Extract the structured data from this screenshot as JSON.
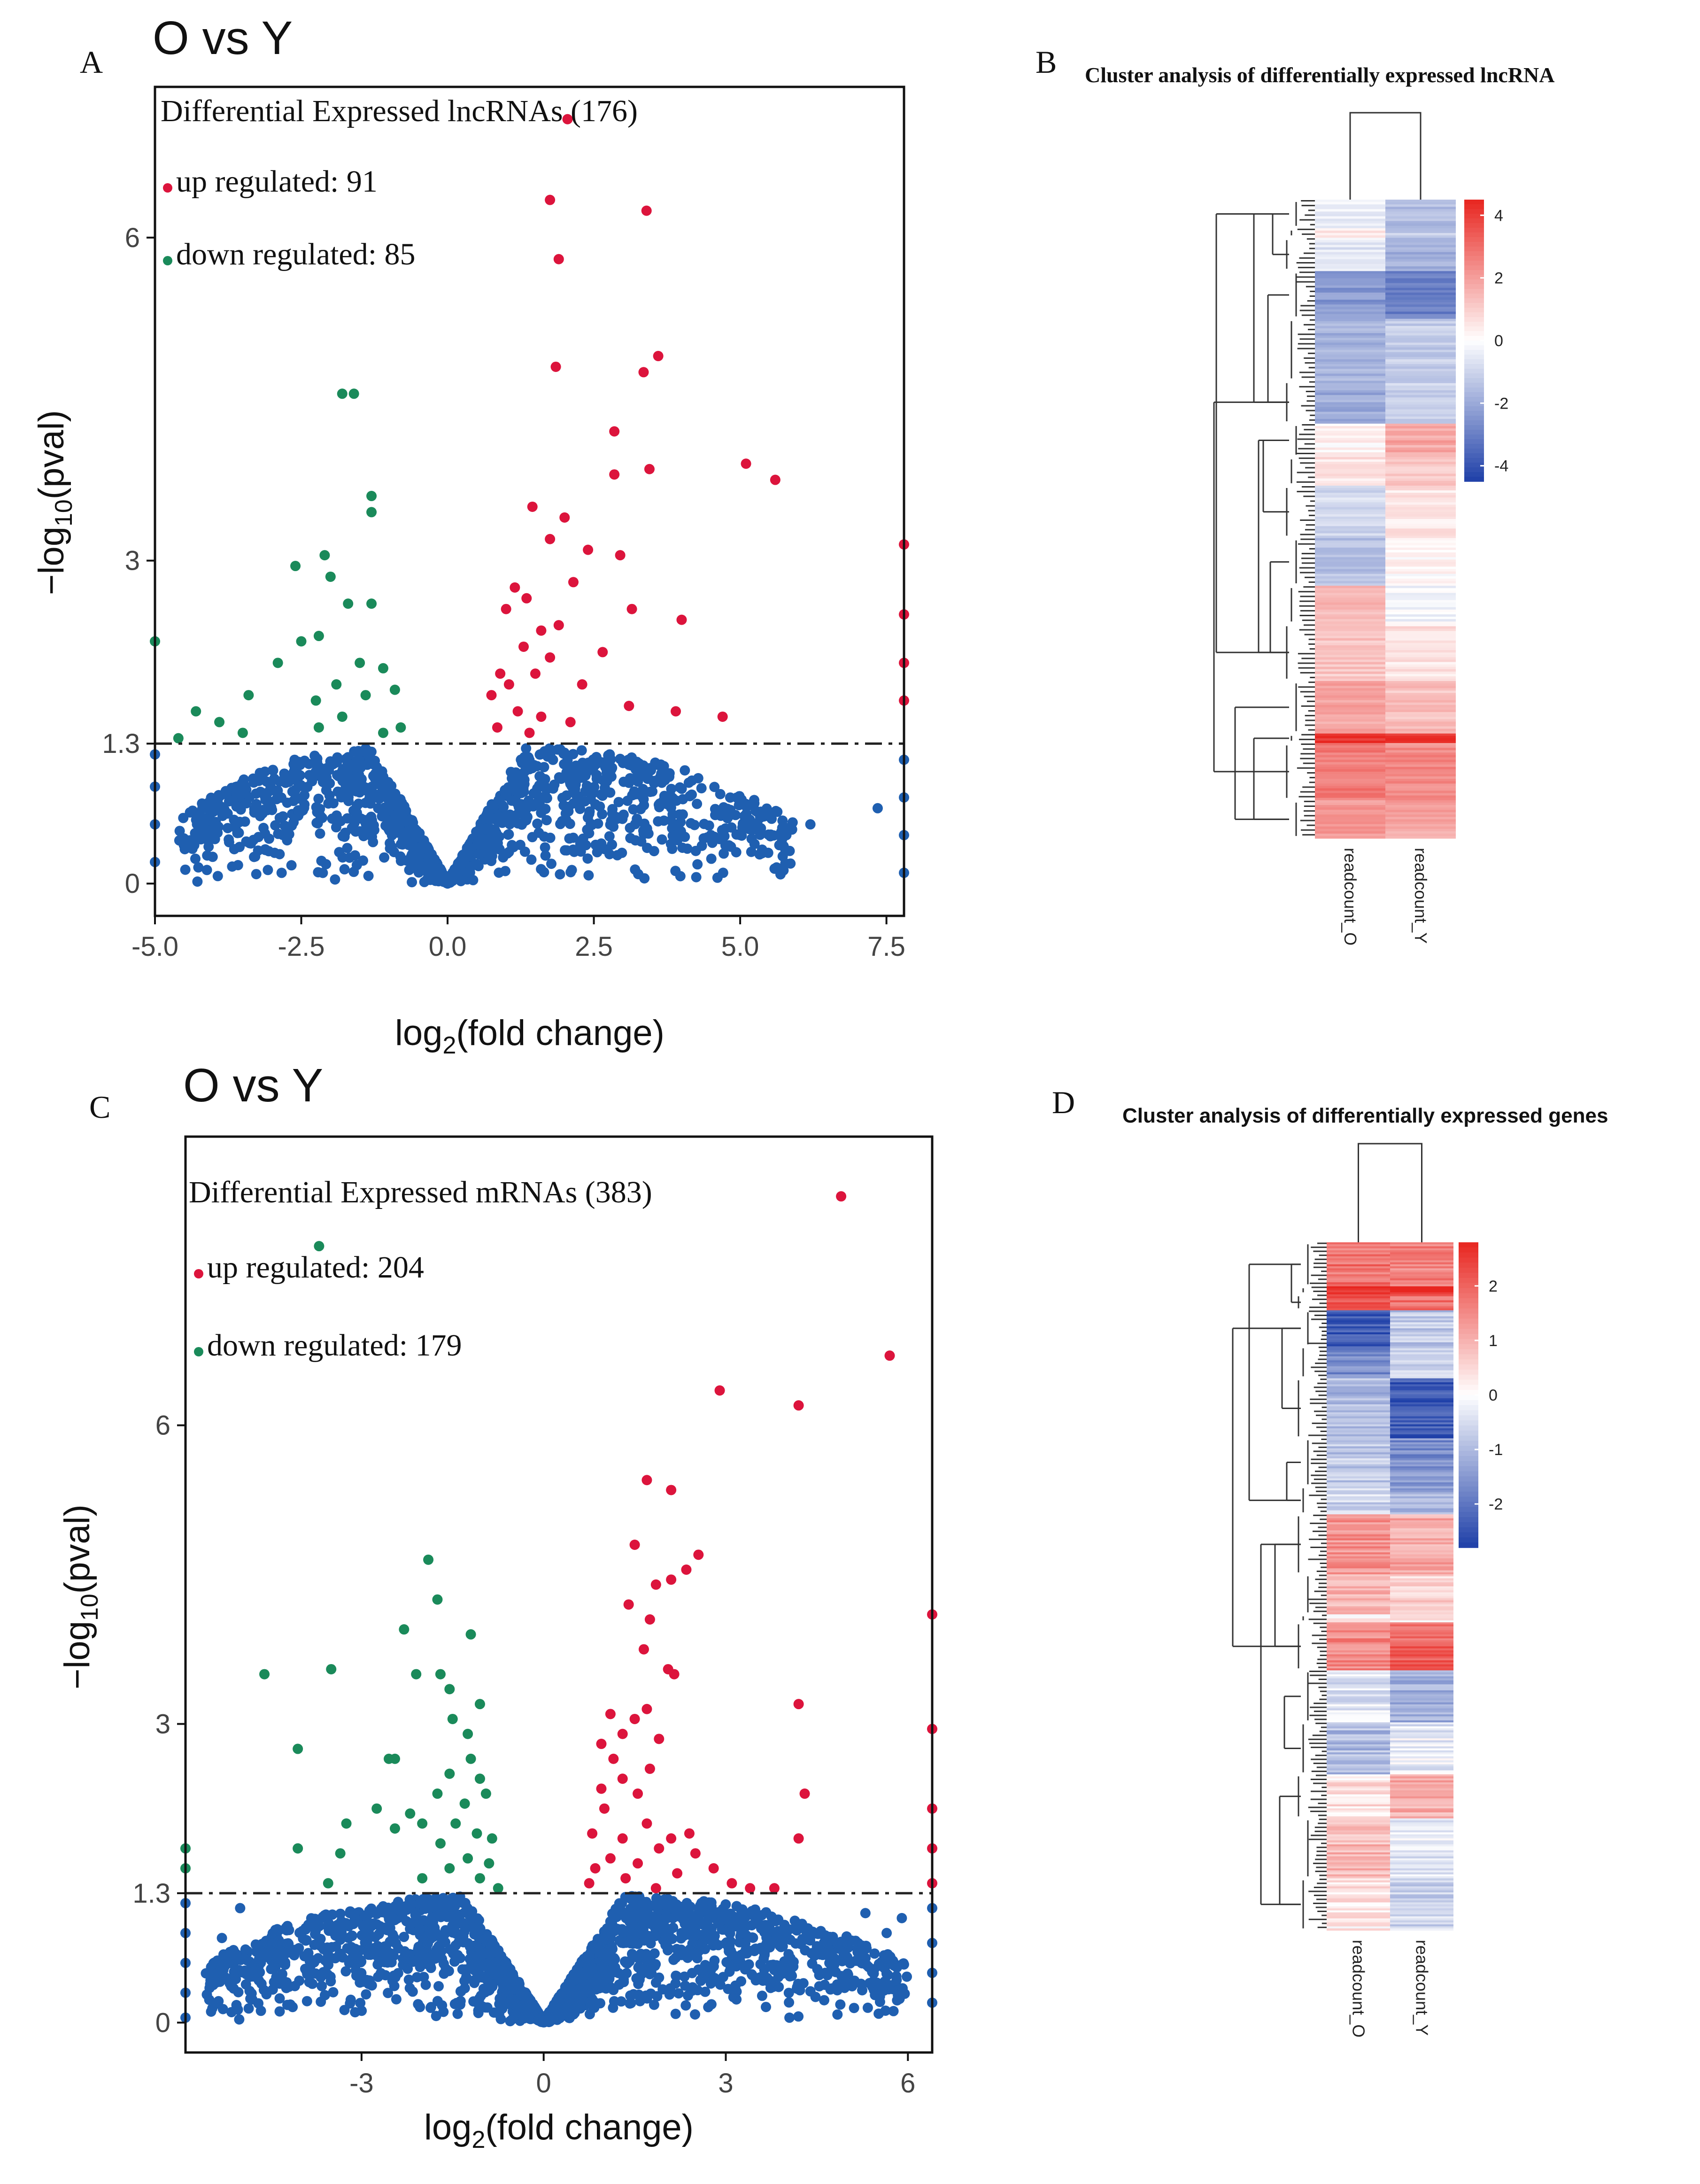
{
  "colors": {
    "up": "#dc143c",
    "down": "#1a8a5a",
    "ns": "#1f5fb0",
    "heat_high": "#e8251f",
    "heat_mid": "#ffffff",
    "heat_low": "#1e3fa8"
  },
  "panels": {
    "A": {
      "letter": "A"
    },
    "B": {
      "letter": "B"
    },
    "C": {
      "letter": "C"
    },
    "D": {
      "letter": "D"
    }
  },
  "chart_data": [
    {
      "panel": "A",
      "type": "scatter",
      "title": "O vs Y",
      "xlabel_main": "log",
      "xlabel_sub": "2",
      "xlabel_rest": "(fold change)",
      "ylabel_main": "−log",
      "ylabel_sub": "10",
      "ylabel_rest": "(pval)",
      "xlim": [
        -5.0,
        7.8
      ],
      "ylim": [
        -0.3,
        7.4
      ],
      "xticks": [
        -5.0,
        -2.5,
        0.0,
        2.5,
        5.0,
        7.5
      ],
      "xtick_labels": [
        "-5.0",
        "-2.5",
        "0.0",
        "2.5",
        "5.0",
        "7.5"
      ],
      "yticks": [
        0,
        1.3,
        3,
        6
      ],
      "ytick_labels": [
        "0",
        "1.3",
        "3",
        "6"
      ],
      "threshold": 1.3,
      "annotation": {
        "title": "Differential Expressed lncRNAs (176)",
        "up": "up regulated: 91",
        "down": "down regulated: 85"
      },
      "up_points": [
        [
          2.05,
          7.1
        ],
        [
          1.75,
          6.35
        ],
        [
          3.4,
          6.25
        ],
        [
          1.9,
          5.8
        ],
        [
          3.6,
          4.9
        ],
        [
          1.85,
          4.8
        ],
        [
          3.35,
          4.75
        ],
        [
          2.85,
          4.2
        ],
        [
          3.45,
          3.85
        ],
        [
          5.1,
          3.9
        ],
        [
          5.6,
          3.75
        ],
        [
          2.85,
          3.8
        ],
        [
          1.45,
          3.5
        ],
        [
          2.0,
          3.4
        ],
        [
          1.75,
          3.2
        ],
        [
          2.4,
          3.1
        ],
        [
          2.95,
          3.05
        ],
        [
          1.15,
          2.75
        ],
        [
          1.35,
          2.65
        ],
        [
          2.15,
          2.8
        ],
        [
          3.15,
          2.55
        ],
        [
          4.0,
          2.45
        ],
        [
          1.0,
          2.55
        ],
        [
          1.6,
          2.35
        ],
        [
          1.9,
          2.4
        ],
        [
          1.3,
          2.2
        ],
        [
          1.75,
          2.1
        ],
        [
          2.65,
          2.15
        ],
        [
          0.9,
          1.95
        ],
        [
          1.05,
          1.85
        ],
        [
          1.5,
          1.95
        ],
        [
          2.3,
          1.85
        ],
        [
          0.75,
          1.75
        ],
        [
          1.2,
          1.6
        ],
        [
          1.6,
          1.55
        ],
        [
          0.85,
          1.45
        ],
        [
          1.4,
          1.4
        ],
        [
          2.1,
          1.5
        ],
        [
          3.1,
          1.65
        ],
        [
          3.9,
          1.6
        ],
        [
          4.7,
          1.55
        ],
        [
          7.8,
          3.15
        ],
        [
          7.8,
          2.5
        ],
        [
          7.8,
          2.05
        ],
        [
          7.8,
          1.7
        ]
      ],
      "down_points": [
        [
          -1.8,
          4.55
        ],
        [
          -1.6,
          4.55
        ],
        [
          -1.3,
          3.6
        ],
        [
          -1.3,
          3.45
        ],
        [
          -2.1,
          3.05
        ],
        [
          -2.6,
          2.95
        ],
        [
          -2.0,
          2.85
        ],
        [
          -1.7,
          2.6
        ],
        [
          -1.3,
          2.6
        ],
        [
          -2.2,
          2.3
        ],
        [
          -2.5,
          2.25
        ],
        [
          -1.5,
          2.05
        ],
        [
          -2.9,
          2.05
        ],
        [
          -1.1,
          2.0
        ],
        [
          -1.9,
          1.85
        ],
        [
          -2.25,
          1.7
        ],
        [
          -0.9,
          1.8
        ],
        [
          -1.4,
          1.75
        ],
        [
          -3.4,
          1.75
        ],
        [
          -1.8,
          1.55
        ],
        [
          -2.2,
          1.45
        ],
        [
          -3.9,
          1.5
        ],
        [
          -1.1,
          1.4
        ],
        [
          -0.8,
          1.45
        ],
        [
          -3.5,
          1.4
        ],
        [
          -4.3,
          1.6
        ],
        [
          -4.6,
          1.35
        ],
        [
          -5.0,
          2.25
        ]
      ],
      "ns_cloud": {
        "x_range": [
          -4.6,
          5.9
        ],
        "max_y": 1.28,
        "count": 1500
      },
      "ns_edge_points": [
        [
          -5.0,
          1.2
        ],
        [
          -5.0,
          0.9
        ],
        [
          -5.0,
          0.55
        ],
        [
          -5.0,
          0.2
        ],
        [
          7.8,
          1.15
        ],
        [
          7.8,
          0.8
        ],
        [
          7.8,
          0.45
        ],
        [
          7.8,
          0.1
        ],
        [
          6.2,
          0.55
        ],
        [
          7.35,
          0.7
        ],
        [
          4.5,
          0.45
        ]
      ]
    },
    {
      "panel": "C",
      "type": "scatter",
      "title": "O vs Y",
      "xlabel_main": "log",
      "xlabel_sub": "2",
      "xlabel_rest": "(fold change)",
      "ylabel_main": "−log",
      "ylabel_sub": "10",
      "ylabel_rest": "(pval)",
      "xlim": [
        -5.9,
        6.4
      ],
      "ylim": [
        -0.3,
        8.9
      ],
      "xticks": [
        -3,
        0,
        3,
        6
      ],
      "xtick_labels": [
        "-3",
        "0",
        "3",
        "6"
      ],
      "yticks": [
        0,
        1.3,
        3,
        6
      ],
      "ytick_labels": [
        "0",
        "1.3",
        "3",
        "6"
      ],
      "threshold": 1.3,
      "annotation": {
        "title": "Differential Expressed mRNAs (383)",
        "up": "up regulated: 204",
        "down": "down regulated: 179"
      },
      "up_points": [
        [
          4.9,
          8.3
        ],
        [
          5.7,
          6.7
        ],
        [
          2.9,
          6.35
        ],
        [
          4.2,
          6.2
        ],
        [
          1.7,
          5.45
        ],
        [
          2.1,
          5.35
        ],
        [
          1.5,
          4.8
        ],
        [
          2.55,
          4.7
        ],
        [
          2.35,
          4.55
        ],
        [
          2.1,
          4.45
        ],
        [
          1.85,
          4.4
        ],
        [
          1.4,
          4.2
        ],
        [
          1.75,
          4.05
        ],
        [
          1.65,
          3.75
        ],
        [
          2.05,
          3.55
        ],
        [
          2.15,
          3.5
        ],
        [
          4.2,
          3.2
        ],
        [
          1.7,
          3.15
        ],
        [
          1.1,
          3.1
        ],
        [
          1.5,
          3.05
        ],
        [
          1.3,
          2.9
        ],
        [
          0.95,
          2.8
        ],
        [
          1.9,
          2.85
        ],
        [
          1.15,
          2.65
        ],
        [
          1.75,
          2.55
        ],
        [
          1.3,
          2.45
        ],
        [
          0.95,
          2.35
        ],
        [
          1.55,
          2.3
        ],
        [
          4.3,
          2.3
        ],
        [
          1.0,
          2.15
        ],
        [
          1.7,
          2.0
        ],
        [
          2.4,
          1.9
        ],
        [
          2.1,
          1.85
        ],
        [
          4.2,
          1.85
        ],
        [
          1.3,
          1.85
        ],
        [
          0.8,
          1.9
        ],
        [
          1.9,
          1.75
        ],
        [
          2.5,
          1.7
        ],
        [
          1.1,
          1.65
        ],
        [
          1.55,
          1.6
        ],
        [
          0.85,
          1.55
        ],
        [
          2.2,
          1.5
        ],
        [
          2.8,
          1.55
        ],
        [
          1.35,
          1.45
        ],
        [
          0.75,
          1.4
        ],
        [
          1.85,
          1.35
        ],
        [
          3.1,
          1.4
        ],
        [
          3.4,
          1.35
        ],
        [
          3.8,
          1.35
        ],
        [
          6.4,
          4.1
        ],
        [
          6.4,
          2.95
        ],
        [
          6.4,
          2.15
        ],
        [
          6.4,
          1.75
        ],
        [
          6.4,
          1.4
        ]
      ],
      "down_points": [
        [
          -3.7,
          7.8
        ],
        [
          -1.9,
          4.65
        ],
        [
          -1.75,
          4.25
        ],
        [
          -2.3,
          3.95
        ],
        [
          -1.2,
          3.9
        ],
        [
          -4.6,
          3.5
        ],
        [
          -3.5,
          3.55
        ],
        [
          -2.1,
          3.5
        ],
        [
          -1.7,
          3.5
        ],
        [
          -1.55,
          3.35
        ],
        [
          -1.05,
          3.2
        ],
        [
          -1.5,
          3.05
        ],
        [
          -1.25,
          2.9
        ],
        [
          -4.05,
          2.75
        ],
        [
          -2.55,
          2.65
        ],
        [
          -2.45,
          2.65
        ],
        [
          -1.2,
          2.65
        ],
        [
          -1.55,
          2.5
        ],
        [
          -1.05,
          2.45
        ],
        [
          -1.75,
          2.3
        ],
        [
          -2.75,
          2.15
        ],
        [
          -2.2,
          2.1
        ],
        [
          -1.3,
          2.2
        ],
        [
          -0.95,
          2.3
        ],
        [
          -2.0,
          2.0
        ],
        [
          -1.45,
          2.0
        ],
        [
          -3.25,
          2.0
        ],
        [
          -2.45,
          1.95
        ],
        [
          -1.1,
          1.9
        ],
        [
          -0.85,
          1.85
        ],
        [
          -1.7,
          1.8
        ],
        [
          -3.35,
          1.7
        ],
        [
          -4.05,
          1.75
        ],
        [
          -1.25,
          1.65
        ],
        [
          -0.9,
          1.6
        ],
        [
          -1.55,
          1.55
        ],
        [
          -2.0,
          1.45
        ],
        [
          -1.05,
          1.45
        ],
        [
          -3.55,
          1.4
        ],
        [
          -5.9,
          1.75
        ],
        [
          -5.9,
          1.55
        ],
        [
          -0.75,
          1.35
        ]
      ],
      "ns_cloud": {
        "x_range": [
          -5.6,
          6.0
        ],
        "max_y": 1.28,
        "count": 2200
      },
      "ns_edge_points": [
        [
          -5.9,
          1.2
        ],
        [
          -5.9,
          0.9
        ],
        [
          -5.9,
          0.6
        ],
        [
          -5.9,
          0.3
        ],
        [
          -5.9,
          0.05
        ],
        [
          6.4,
          1.15
        ],
        [
          6.4,
          0.8
        ],
        [
          6.4,
          0.5
        ],
        [
          6.4,
          0.2
        ],
        [
          -5.3,
          0.85
        ],
        [
          -5.0,
          1.15
        ],
        [
          5.3,
          1.1
        ],
        [
          5.65,
          0.9
        ],
        [
          5.9,
          1.05
        ]
      ]
    },
    {
      "panel": "B",
      "type": "heatmap",
      "title": "Cluster analysis of differentially expressed lncRNA",
      "columns": [
        "readcount_O",
        "readcount_Y"
      ],
      "colorbar_ticks": [
        4,
        2,
        0,
        -2,
        -4
      ],
      "colorbar_tick_labels": [
        "4",
        "2",
        "0",
        "-2",
        "-4"
      ],
      "colorbar_range": [
        -4.5,
        4.5
      ],
      "row_blocks": [
        {
          "rows": 12,
          "values": [
            -0.4,
            -1.6
          ]
        },
        {
          "rows": 4,
          "values": [
            0.6,
            -1.2
          ]
        },
        {
          "rows": 14,
          "values": [
            -0.6,
            -1.8
          ]
        },
        {
          "rows": 20,
          "values": [
            -2.4,
            -3.0
          ]
        },
        {
          "rows": 26,
          "values": [
            -1.8,
            -1.2
          ]
        },
        {
          "rows": 18,
          "values": [
            -2.0,
            -1.0
          ]
        },
        {
          "rows": 14,
          "values": [
            0.3,
            1.8
          ]
        },
        {
          "rows": 12,
          "values": [
            0.6,
            1.2
          ]
        },
        {
          "rows": 22,
          "values": [
            -0.9,
            0.5
          ]
        },
        {
          "rows": 20,
          "values": [
            -1.4,
            0.2
          ]
        },
        {
          "rows": 16,
          "values": [
            1.4,
            -0.2
          ]
        },
        {
          "rows": 24,
          "values": [
            1.2,
            0.6
          ]
        },
        {
          "rows": 22,
          "values": [
            1.9,
            1.3
          ]
        },
        {
          "rows": 4,
          "values": [
            4.2,
            4.2
          ]
        },
        {
          "rows": 24,
          "values": [
            2.7,
            2.4
          ]
        },
        {
          "rows": 16,
          "values": [
            2.0,
            1.8
          ]
        }
      ]
    },
    {
      "panel": "D",
      "type": "heatmap",
      "title": "Cluster analysis of differentially expressed genes",
      "columns": [
        "readcount_O",
        "readcount_Y"
      ],
      "colorbar_ticks": [
        2,
        1,
        0,
        -1,
        -2
      ],
      "colorbar_tick_labels": [
        "2",
        "1",
        "0",
        "-1",
        "-2"
      ],
      "colorbar_range": [
        -2.8,
        2.8
      ],
      "row_blocks": [
        {
          "rows": 22,
          "values": [
            1.8,
            1.6
          ]
        },
        {
          "rows": 4,
          "values": [
            2.8,
            2.8
          ]
        },
        {
          "rows": 8,
          "values": [
            2.2,
            1.8
          ]
        },
        {
          "rows": 18,
          "values": [
            -2.4,
            -0.8
          ]
        },
        {
          "rows": 16,
          "values": [
            -1.6,
            -0.6
          ]
        },
        {
          "rows": 30,
          "values": [
            -1.0,
            -2.4
          ]
        },
        {
          "rows": 24,
          "values": [
            -0.8,
            -1.6
          ]
        },
        {
          "rows": 14,
          "values": [
            -0.6,
            -1.2
          ]
        },
        {
          "rows": 30,
          "values": [
            1.4,
            1.1
          ]
        },
        {
          "rows": 20,
          "values": [
            1.0,
            0.6
          ]
        },
        {
          "rows": 4,
          "values": [
            0.2,
            0.2
          ]
        },
        {
          "rows": 24,
          "values": [
            1.5,
            2.0
          ]
        },
        {
          "rows": 26,
          "values": [
            -0.4,
            -1.2
          ]
        },
        {
          "rows": 26,
          "values": [
            -1.0,
            -0.3
          ]
        },
        {
          "rows": 22,
          "values": [
            0.4,
            1.0
          ]
        },
        {
          "rows": 30,
          "values": [
            0.9,
            -0.3
          ]
        },
        {
          "rows": 26,
          "values": [
            0.3,
            -0.6
          ]
        }
      ]
    }
  ]
}
